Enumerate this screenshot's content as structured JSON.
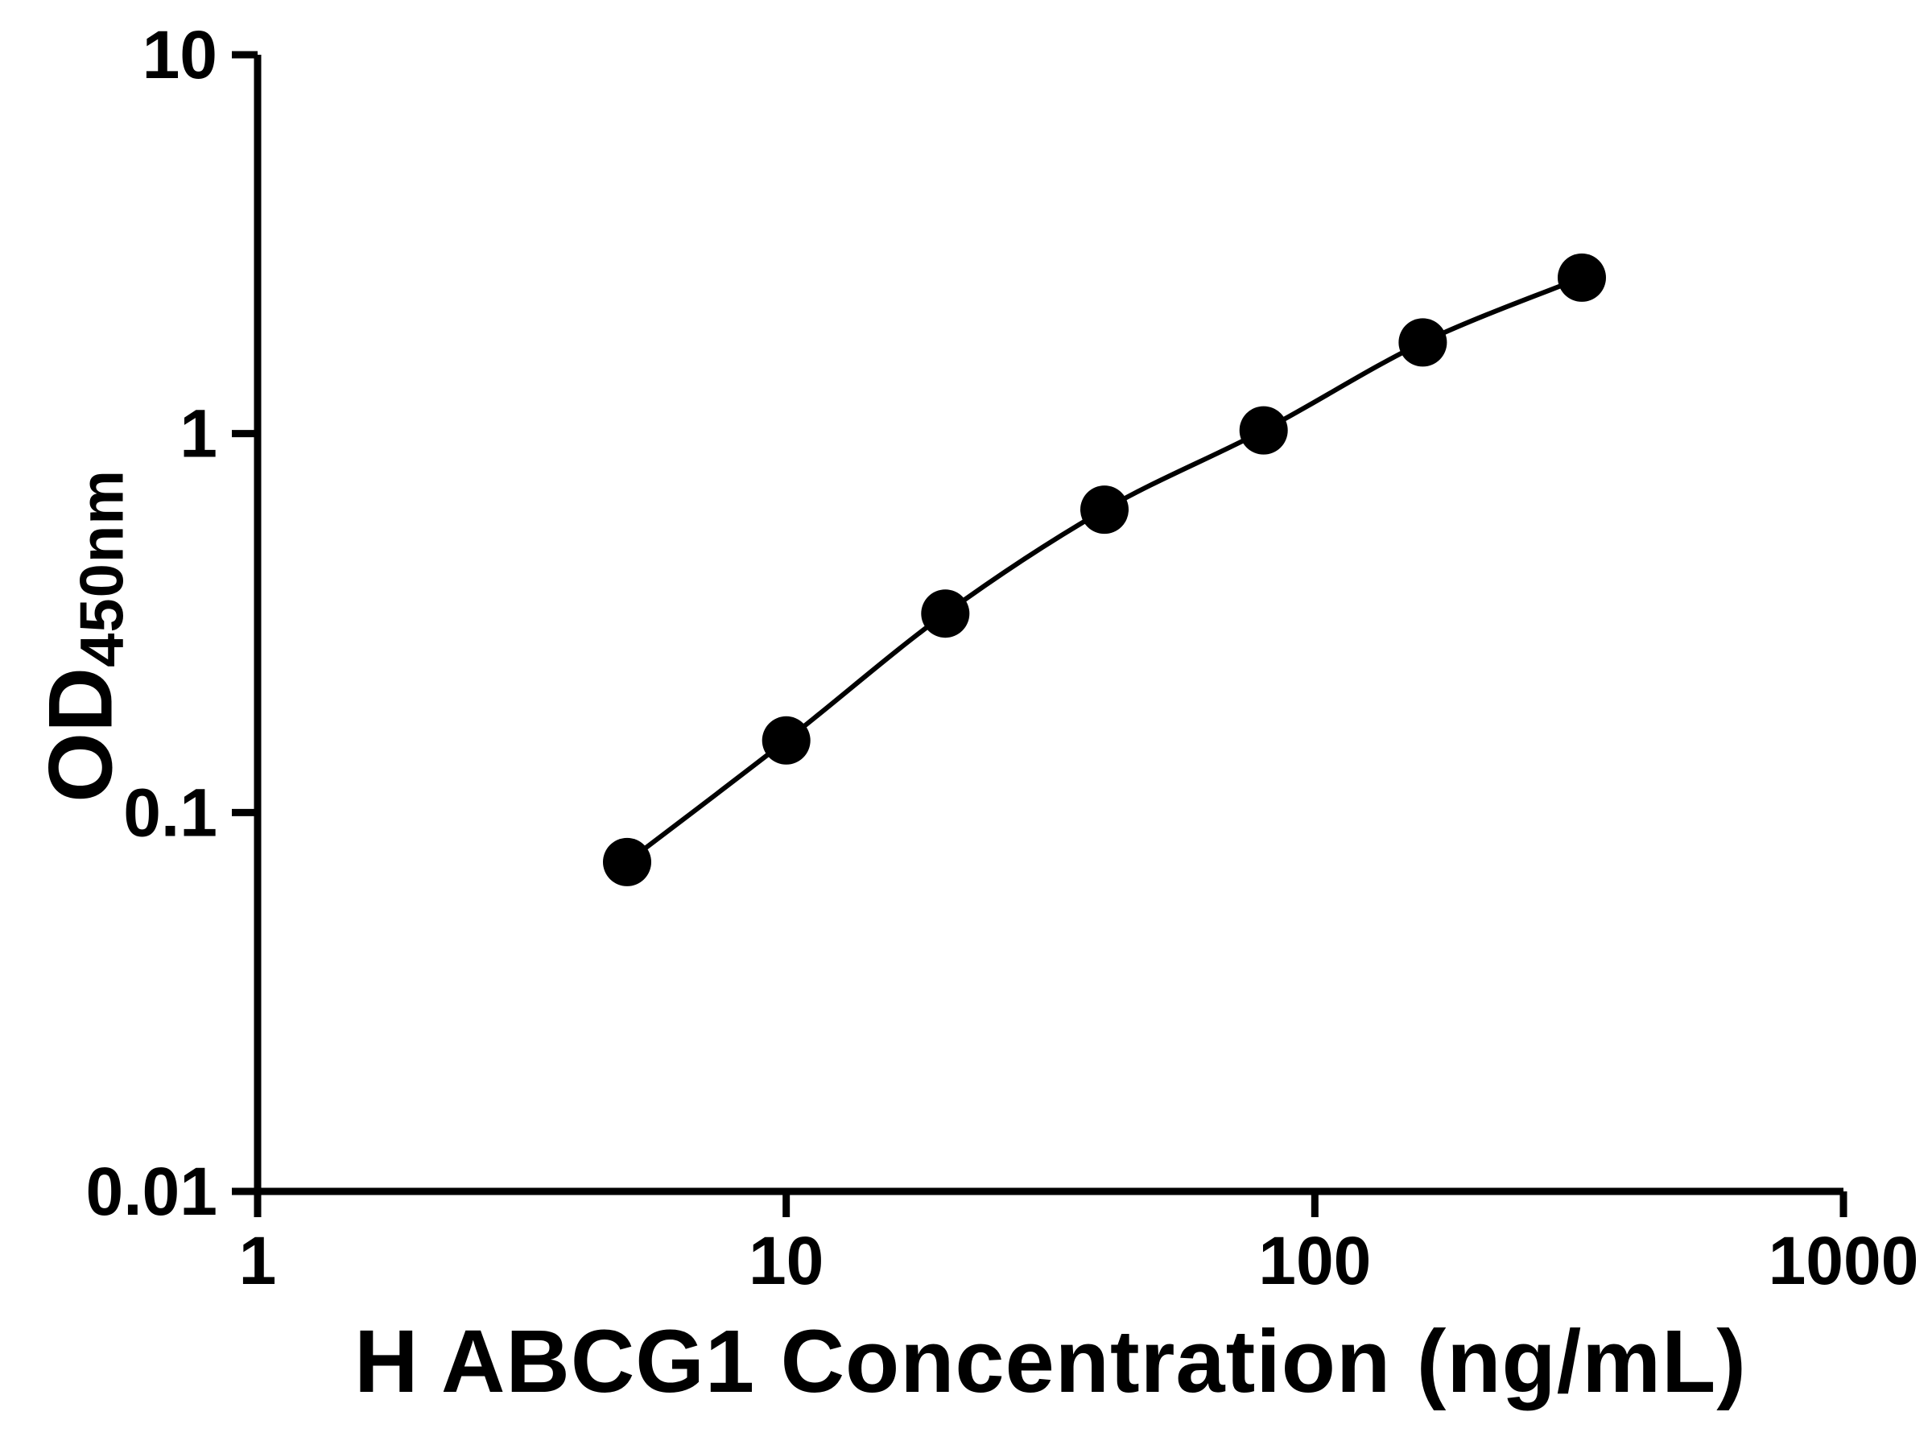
{
  "chart_data": {
    "type": "scatter",
    "title": "",
    "xlabel": "H ABCG1 Concentration (ng/mL)",
    "ylabel_main": "OD",
    "ylabel_sub": "450nm",
    "x_scale": "log",
    "y_scale": "log",
    "xlim": [
      1,
      1000
    ],
    "ylim": [
      0.01,
      10
    ],
    "x_ticks": [
      1,
      10,
      100,
      1000
    ],
    "x_tick_labels": [
      "1",
      "10",
      "100",
      "1000"
    ],
    "y_ticks": [
      0.01,
      0.1,
      1,
      10
    ],
    "y_tick_labels": [
      "0.01",
      "0.1",
      "1",
      "10"
    ],
    "x": [
      5,
      10,
      20,
      40,
      80,
      160,
      320
    ],
    "y": [
      0.074,
      0.155,
      0.335,
      0.63,
      1.02,
      1.74,
      2.58
    ],
    "grid": false,
    "legend": null,
    "marker_color": "#000000",
    "line_color": "#000000",
    "axis_color": "#000000",
    "background_color": "#ffffff"
  }
}
